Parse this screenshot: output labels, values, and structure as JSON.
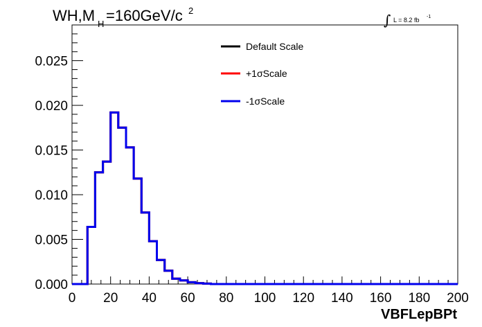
{
  "chart_data": {
    "type": "line",
    "title_main": "WH,M",
    "title_sub": "H",
    "title_rest": "=160GeV/c",
    "title_sup": "2",
    "lumi_label": "L = 8.2 fb",
    "lumi_sup": "-1",
    "xlabel": "VBFLepBPt",
    "xlim": [
      0,
      200
    ],
    "ylim": [
      0,
      0.029
    ],
    "xticks": [
      0,
      20,
      40,
      60,
      80,
      100,
      120,
      140,
      160,
      180,
      200
    ],
    "xtick_labels": [
      "0",
      "20",
      "40",
      "60",
      "80",
      "100",
      "120",
      "140",
      "160",
      "180",
      "200"
    ],
    "yticks": [
      0.0,
      0.005,
      0.01,
      0.015,
      0.02,
      0.025
    ],
    "ytick_labels": [
      "0.000",
      "0.005",
      "0.010",
      "0.015",
      "0.020",
      "0.025"
    ],
    "bin_edges": [
      0,
      4,
      8,
      12,
      16,
      20,
      24,
      28,
      32,
      36,
      40,
      44,
      48,
      52,
      56,
      60,
      64,
      68,
      72,
      76,
      80,
      200
    ],
    "series": [
      {
        "name": "Default Scale",
        "color": "#000000",
        "values": [
          0,
          0,
          0.0064,
          0.0125,
          0.0137,
          0.0192,
          0.0175,
          0.0153,
          0.0118,
          0.008,
          0.0048,
          0.0027,
          0.0015,
          0.0006,
          0.0004,
          0.0002,
          0.0001,
          5e-05,
          0,
          0,
          0
        ]
      },
      {
        "name": "+1σScale",
        "color": "#ff0000",
        "values": [
          0,
          0,
          0.0064,
          0.0125,
          0.0137,
          0.0192,
          0.0175,
          0.0153,
          0.0118,
          0.008,
          0.0048,
          0.0027,
          0.0015,
          0.0006,
          0.0004,
          0.0002,
          0.0001,
          5e-05,
          0,
          0,
          0
        ]
      },
      {
        "name": "-1σScale",
        "color": "#0000ee",
        "values": [
          0,
          0,
          0.0064,
          0.0125,
          0.0137,
          0.0192,
          0.0175,
          0.0153,
          0.0118,
          0.008,
          0.0048,
          0.0027,
          0.0015,
          0.0006,
          0.0004,
          0.0002,
          0.0001,
          5e-05,
          0,
          0,
          0
        ]
      }
    ],
    "legend_position": "top-center",
    "grid": false
  }
}
